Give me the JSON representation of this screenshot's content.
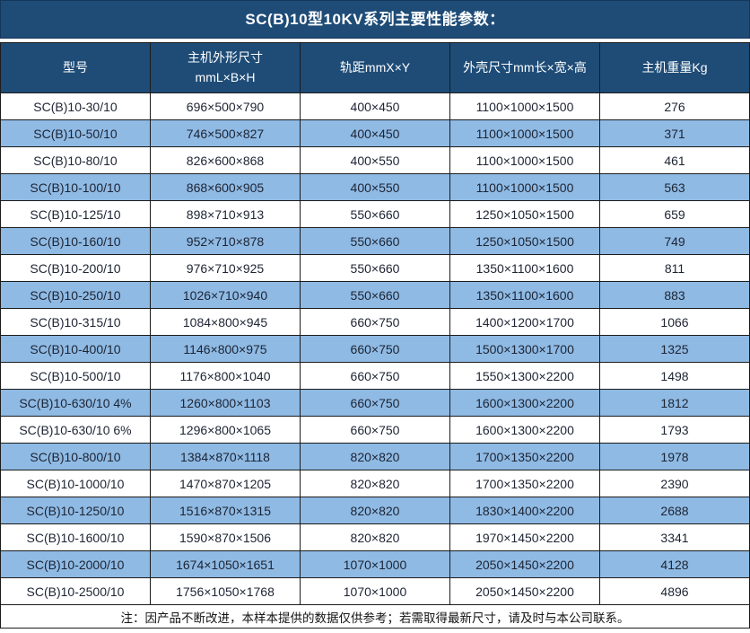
{
  "title": "SC(B)10型10KV系列主要性能参数：",
  "colors": {
    "header_bg": "#1E4C77",
    "alt_row_bg": "#8FBAE4",
    "grid_border": "#1b1b1b",
    "header_text": "#ffffff",
    "body_text": "#1d2433"
  },
  "table": {
    "headers": [
      "型号",
      "主机外形尺寸\nmmL×B×H",
      "轨距mmX×Y",
      "外壳尺寸mm长×宽×高",
      "主机重量Kg"
    ],
    "rows": [
      [
        "SC(B)10-30/10",
        "696×500×790",
        "400×450",
        "1100×1000×1500",
        "276"
      ],
      [
        "SC(B)10-50/10",
        "746×500×827",
        "400×450",
        "1100×1000×1500",
        "371"
      ],
      [
        "SC(B)10-80/10",
        "826×600×868",
        "400×550",
        "1100×1000×1500",
        "461"
      ],
      [
        "SC(B)10-100/10",
        "868×600×905",
        "400×550",
        "1100×1000×1500",
        "563"
      ],
      [
        "SC(B)10-125/10",
        "898×710×913",
        "550×660",
        "1250×1050×1500",
        "659"
      ],
      [
        "SC(B)10-160/10",
        "952×710×878",
        "550×660",
        "1250×1050×1500",
        "749"
      ],
      [
        "SC(B)10-200/10",
        "976×710×925",
        "550×660",
        "1350×1100×1600",
        "811"
      ],
      [
        "SC(B)10-250/10",
        "1026×710×940",
        "550×660",
        "1350×1100×1600",
        "883"
      ],
      [
        "SC(B)10-315/10",
        "1084×800×945",
        "660×750",
        "1400×1200×1700",
        "1066"
      ],
      [
        "SC(B)10-400/10",
        "1146×800×975",
        "660×750",
        "1500×1300×1700",
        "1325"
      ],
      [
        "SC(B)10-500/10",
        "1176×800×1040",
        "660×750",
        "1550×1300×2200",
        "1498"
      ],
      [
        "SC(B)10-630/10 4%",
        "1260×800×1103",
        "660×750",
        "1600×1300×2200",
        "1812"
      ],
      [
        "SC(B)10-630/10 6%",
        "1296×800×1065",
        "660×750",
        "1600×1300×2200",
        "1793"
      ],
      [
        "SC(B)10-800/10",
        "1384×870×1118",
        "820×820",
        "1700×1350×2200",
        "1978"
      ],
      [
        "SC(B)10-1000/10",
        "1470×870×1205",
        "820×820",
        "1700×1350×2200",
        "2390"
      ],
      [
        "SC(B)10-1250/10",
        "1516×870×1315",
        "820×820",
        "1830×1400×2200",
        "2688"
      ],
      [
        "SC(B)10-1600/10",
        "1590×870×1506",
        "820×820",
        "1970×1450×2200",
        "3341"
      ],
      [
        "SC(B)10-2000/10",
        "1674×1050×1651",
        "1070×1000",
        "2050×1450×2200",
        "4128"
      ],
      [
        "SC(B)10-2500/10",
        "1756×1050×1768",
        "1070×1000",
        "2050×1450×2200",
        "4896"
      ]
    ]
  },
  "footer_note": "注：因产品不断改进，本样本提供的数据仅供参考；若需取得最新尺寸，请及时与本公司联系。"
}
